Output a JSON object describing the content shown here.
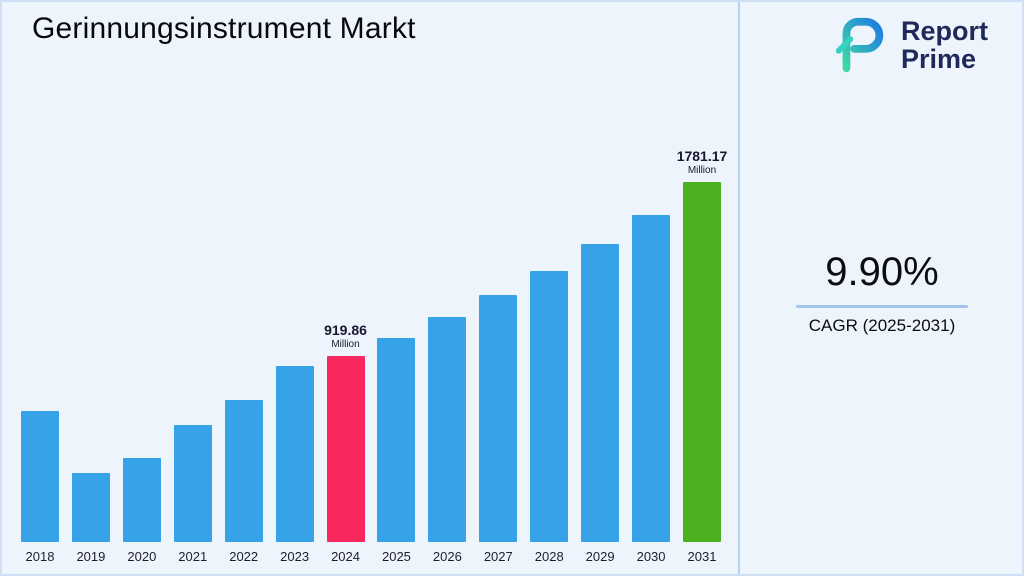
{
  "page": {
    "title": "Gerinnungsinstrument Markt"
  },
  "logo": {
    "line1": "Report",
    "line2": "Prime"
  },
  "stats": {
    "cagr_value": "9.90%",
    "cagr_label": "CAGR (2025-2031)"
  },
  "chart_data": {
    "type": "bar",
    "title": "Gerinnungsinstrument Markt",
    "unit": "Million",
    "categories": [
      "2018",
      "2019",
      "2020",
      "2021",
      "2022",
      "2023",
      "2024",
      "2025",
      "2026",
      "2027",
      "2028",
      "2029",
      "2030",
      "2031"
    ],
    "values": [
      650,
      340,
      415,
      580,
      705,
      870,
      919.86,
      1011,
      1111,
      1221,
      1342,
      1474,
      1620,
      1781.17
    ],
    "bar_color": "#36a3e9",
    "highlights": {
      "6": "#f8285f",
      "13": "#4db01e"
    },
    "labels": [
      {
        "index": 6,
        "value": "919.86",
        "unit": "Million"
      },
      {
        "index": 13,
        "value": "1781.17",
        "unit": "Million"
      }
    ],
    "xlabel": "",
    "ylabel": "",
    "ylim": [
      0,
      1900
    ],
    "grid": false,
    "legend": false
  },
  "colors": {
    "background": "#eef4fc",
    "divider": "#b9d3ee",
    "underline": "#9fc6ea",
    "logo_navy": "#1f2a5a",
    "logo_teal": "#3fd9a4",
    "logo_blue": "#1e7be4"
  }
}
